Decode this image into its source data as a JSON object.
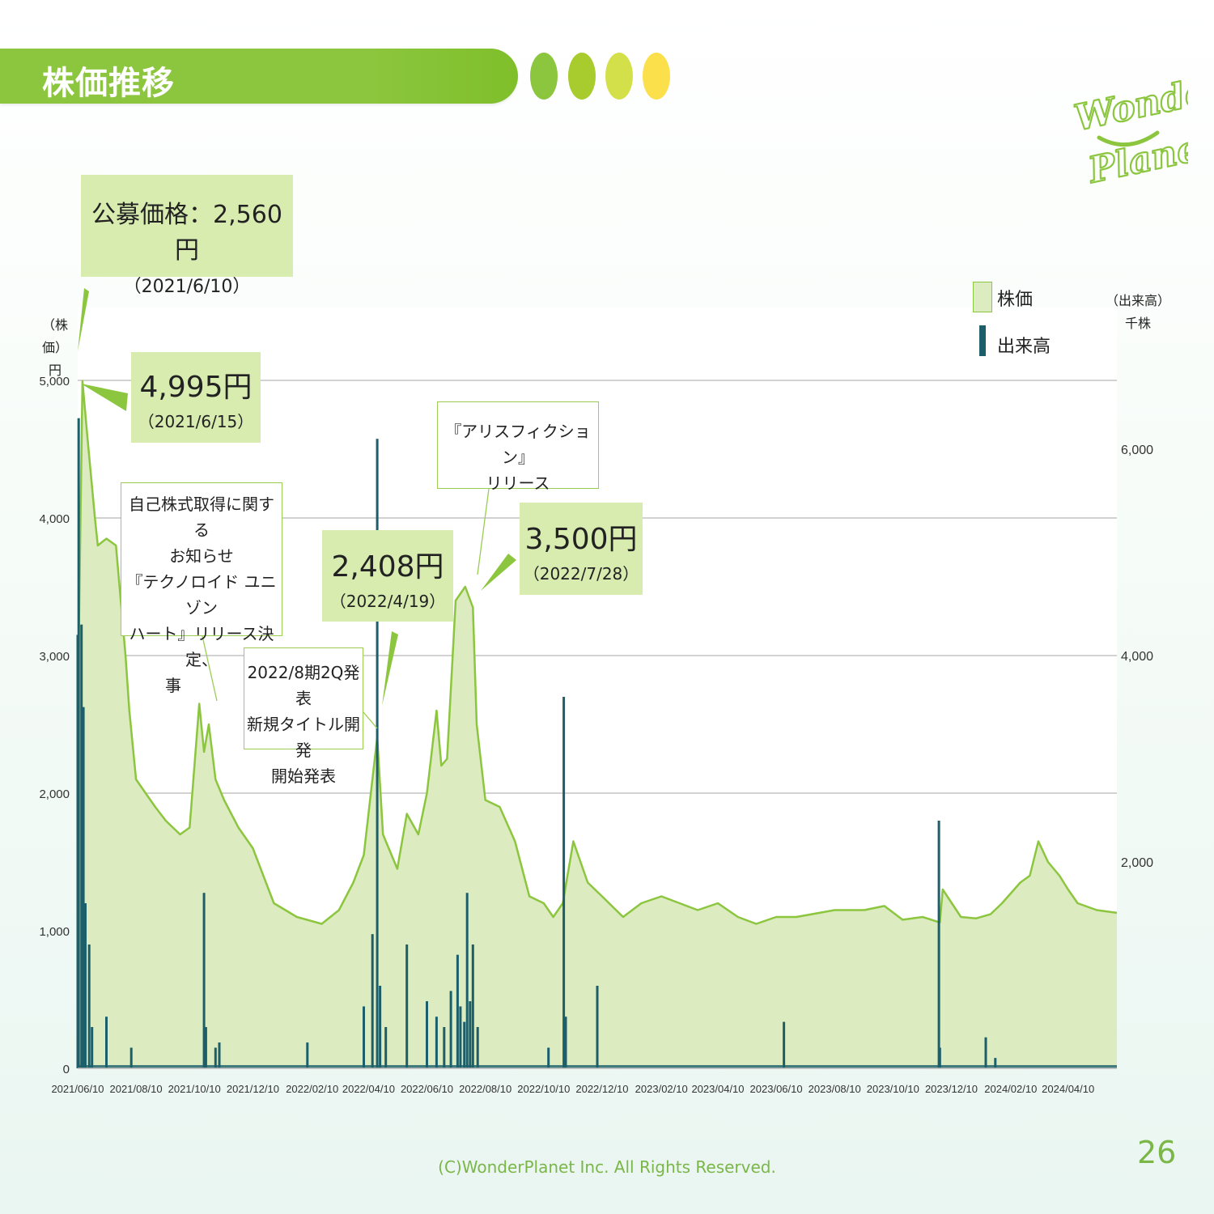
{
  "header": {
    "title": "株価推移"
  },
  "brand": {
    "logo_text_1": "Wonder",
    "logo_text_2": "Planet",
    "logo_color": "#8cc63f",
    "dot_colors": [
      "#8cc63f",
      "#a8cc2d",
      "#d4e04a",
      "#fbe04b"
    ]
  },
  "legend": {
    "price_label": "株価",
    "volume_label": "出来高"
  },
  "axis": {
    "left_unit_1": "（株価）",
    "left_unit_2": "円",
    "right_unit_1": "（出来高）",
    "right_unit_2": "千株"
  },
  "callouts": [
    {
      "price": "公募価格：2,560円",
      "date": "（2021/6/10）"
    },
    {
      "price": "4,995円",
      "date": "（2021/6/15）"
    },
    {
      "price": "2,408円",
      "date": "（2022/4/19）"
    },
    {
      "price": "3,500円",
      "date": "（2022/7/28）"
    }
  ],
  "notes": [
    {
      "lines": [
        "自己株式取得に関する",
        "お知らせ",
        "『テクノロイド ユニゾン",
        "ハート』リリース決定、",
        "事"
      ]
    },
    {
      "lines": [
        "2022/8期2Q発表",
        "新規タイトル開発",
        "開始発表"
      ]
    },
    {
      "lines": [
        "『アリスフィクション』",
        "リリース"
      ]
    }
  ],
  "footer": {
    "copyright": "(C)WonderPlanet Inc.  All Rights Reserved.",
    "page": "26"
  },
  "chart_data": {
    "type": "area",
    "title": "",
    "xlabel": "",
    "ylabel_left": "円",
    "ylabel_right": "千株",
    "left_ylim": [
      0,
      5000
    ],
    "left_yticks": [
      0,
      1000,
      2000,
      3000,
      4000,
      5000
    ],
    "left_yticklabels": [
      "0",
      "1,000",
      "2,000",
      "3,000",
      "4,000",
      "5,000"
    ],
    "right_ylim": [
      0,
      6666
    ],
    "right_yticks": [
      2000,
      4000,
      6000
    ],
    "right_yticklabels": [
      "2,000",
      "4,000",
      "6,000"
    ],
    "x_range": [
      "2021-06-10",
      "2024-05-31"
    ],
    "xticks": [
      "2021-06-10",
      "2021-08-10",
      "2021-10-10",
      "2021-12-10",
      "2022-02-10",
      "2022-04-10",
      "2022-06-10",
      "2022-08-10",
      "2022-10-10",
      "2022-12-10",
      "2023-02-10",
      "2023-04-10",
      "2023-06-10",
      "2023-08-10",
      "2023-10-10",
      "2023-12-10",
      "2024-02-10",
      "2024-04-10"
    ],
    "xticklabels": [
      "2021/06/10",
      "2021/08/10",
      "2021/10/10",
      "2021/12/10",
      "2022/02/10",
      "2022/04/10",
      "2022/06/10",
      "2022/08/10",
      "2022/10/10",
      "2022/12/10",
      "2023/02/10",
      "2023/04/10",
      "2023/06/10",
      "2023/08/10",
      "2023/10/10",
      "2023/12/10",
      "2024/02/10",
      "2024/04/10"
    ],
    "grid": true,
    "legend_position": "top-right",
    "colors": {
      "price_fill": "#dcebc0",
      "price_line": "#8cc63f",
      "volume": "#1c5f6b",
      "grid": "#c4c4c4"
    },
    "series": [
      {
        "name": "株価",
        "axis": "left",
        "type": "area",
        "x": [
          "2021-06-10",
          "2021-06-15",
          "2021-06-20",
          "2021-06-28",
          "2021-07-01",
          "2021-07-10",
          "2021-07-20",
          "2021-07-30",
          "2021-08-03",
          "2021-08-10",
          "2021-08-20",
          "2021-08-30",
          "2021-09-10",
          "2021-09-25",
          "2021-10-05",
          "2021-10-15",
          "2021-10-20",
          "2021-10-25",
          "2021-11-01",
          "2021-11-10",
          "2021-11-25",
          "2021-12-10",
          "2022-01-01",
          "2022-01-25",
          "2022-02-20",
          "2022-03-10",
          "2022-03-25",
          "2022-04-05",
          "2022-04-19",
          "2022-04-25",
          "2022-05-10",
          "2022-05-20",
          "2022-06-01",
          "2022-06-10",
          "2022-06-20",
          "2022-06-25",
          "2022-07-01",
          "2022-07-10",
          "2022-07-20",
          "2022-07-28",
          "2022-08-01",
          "2022-08-10",
          "2022-08-25",
          "2022-09-10",
          "2022-09-25",
          "2022-10-10",
          "2022-10-20",
          "2022-10-30",
          "2022-11-10",
          "2022-11-25",
          "2022-12-10",
          "2023-01-01",
          "2023-01-20",
          "2023-02-10",
          "2023-03-01",
          "2023-03-20",
          "2023-04-10",
          "2023-05-01",
          "2023-05-20",
          "2023-06-10",
          "2023-07-01",
          "2023-08-10",
          "2023-09-10",
          "2023-10-01",
          "2023-10-20",
          "2023-11-10",
          "2023-11-28",
          "2023-12-01",
          "2023-12-20",
          "2024-01-05",
          "2024-01-20",
          "2024-02-01",
          "2024-02-20",
          "2024-03-01",
          "2024-03-10",
          "2024-03-20",
          "2024-04-01",
          "2024-04-10",
          "2024-04-20",
          "2024-05-10",
          "2024-05-31"
        ],
        "y": [
          2560,
          4995,
          4600,
          4000,
          3800,
          3850,
          3800,
          3000,
          2600,
          2100,
          2000,
          1900,
          1800,
          1700,
          1750,
          2650,
          2300,
          2500,
          2100,
          1950,
          1750,
          1600,
          1200,
          1100,
          1050,
          1150,
          1350,
          1550,
          2408,
          1700,
          1450,
          1850,
          1700,
          2000,
          2600,
          2200,
          2250,
          3400,
          3500,
          3350,
          2500,
          1950,
          1900,
          1650,
          1250,
          1200,
          1100,
          1200,
          1650,
          1350,
          1250,
          1100,
          1200,
          1250,
          1200,
          1150,
          1200,
          1100,
          1050,
          1100,
          1100,
          1150,
          1150,
          1180,
          1080,
          1100,
          1060,
          1300,
          1100,
          1090,
          1120,
          1200,
          1350,
          1400,
          1650,
          1500,
          1400,
          1300,
          1200,
          1150,
          1130
        ]
      },
      {
        "name": "出来高",
        "axis": "right",
        "type": "bar",
        "x": [
          "2021-06-10",
          "2021-06-11",
          "2021-06-14",
          "2021-06-15",
          "2021-06-16",
          "2021-06-18",
          "2021-06-22",
          "2021-06-25",
          "2021-07-10",
          "2021-08-05",
          "2021-10-20",
          "2021-10-22",
          "2021-11-01",
          "2021-11-05",
          "2022-02-05",
          "2022-04-05",
          "2022-04-14",
          "2022-04-19",
          "2022-04-22",
          "2022-04-28",
          "2022-05-20",
          "2022-06-10",
          "2022-06-20",
          "2022-06-28",
          "2022-07-05",
          "2022-07-12",
          "2022-07-15",
          "2022-07-19",
          "2022-07-22",
          "2022-07-25",
          "2022-07-28",
          "2022-08-02",
          "2022-10-15",
          "2022-10-31",
          "2022-11-02",
          "2022-12-05",
          "2023-06-18",
          "2023-11-27",
          "2023-11-28",
          "2024-01-15",
          "2024-01-25"
        ],
        "y": [
          4200,
          6300,
          4300,
          3500,
          3500,
          1600,
          1200,
          400,
          500,
          200,
          1700,
          400,
          200,
          250,
          250,
          600,
          1300,
          6100,
          800,
          400,
          1200,
          650,
          500,
          400,
          750,
          1100,
          600,
          450,
          1700,
          650,
          1200,
          400,
          200,
          3600,
          500,
          800,
          450,
          2400,
          200,
          300,
          100
        ]
      }
    ]
  }
}
